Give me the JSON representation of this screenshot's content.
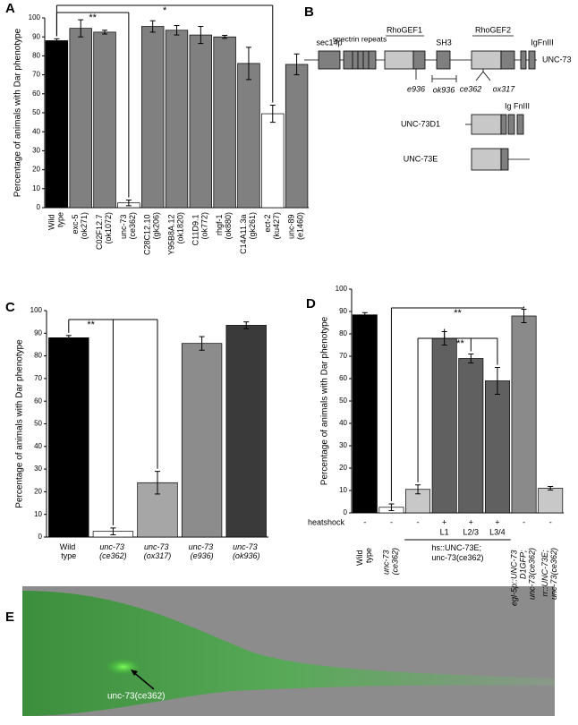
{
  "chart_data": [
    {
      "type": "bar",
      "panel": "A",
      "ylabel": "Percentage of animals with Dar phenotype",
      "categories": [
        "Wild type",
        "exc-5 (ok271)",
        "C02F12.7 (ok1072)",
        "unc-73 (ce362)",
        "C28C12.10 (gk206)",
        "Y95B8A.12 (ok1820)",
        "C11D9.1 (ok772)",
        "rhgf-1 (ok880)",
        "C14A11.3a (gk261)",
        "ect-2 (ku427)",
        "unc-89 (e1460)"
      ],
      "italic": [
        false,
        false,
        false,
        false,
        false,
        false,
        false,
        false,
        false,
        false,
        false
      ],
      "values": [
        88,
        94.5,
        92.5,
        2.5,
        95.5,
        93.5,
        91,
        90,
        76,
        49.5,
        75.5
      ],
      "errors": [
        1,
        4.5,
        1,
        1.5,
        3,
        2.5,
        4.5,
        0.8,
        8.5,
        4.5,
        5.5
      ],
      "colors": [
        "#000000",
        "#808080",
        "#808080",
        "#ffffff",
        "#808080",
        "#808080",
        "#808080",
        "#808080",
        "#808080",
        "#ffffff",
        "#808080"
      ],
      "ylim": [
        0,
        100
      ],
      "yticks": [
        0,
        10,
        20,
        30,
        40,
        50,
        60,
        70,
        80,
        90,
        100
      ],
      "annotations": [
        "**",
        "*"
      ]
    },
    {
      "type": "bar",
      "panel": "C",
      "ylabel": "Percentage of animals with Dar phenotype",
      "categories": [
        "Wild type",
        "unc-73 (ce362)",
        "unc-73 (ox317)",
        "unc-73 (e936)",
        "unc-73 (ok936)"
      ],
      "italic": [
        false,
        true,
        true,
        true,
        true
      ],
      "values": [
        88,
        2.5,
        24,
        85.5,
        93.5
      ],
      "errors": [
        1,
        1.5,
        5,
        3,
        1.5
      ],
      "colors": [
        "#000000",
        "#ffffff",
        "#a6a6a6",
        "#8c8c8c",
        "#3a3a3a"
      ],
      "ylim": [
        0,
        100
      ],
      "yticks": [
        0,
        10,
        20,
        30,
        40,
        50,
        60,
        70,
        80,
        90,
        100
      ],
      "annotations": [
        "**"
      ]
    },
    {
      "type": "bar",
      "panel": "D",
      "ylabel": "Percentage of animals with Dar phenotype",
      "categories": [
        "Wild type",
        "unc-73 (ce362)",
        null,
        null,
        null,
        null,
        "egl-5p::UNC-73 D1GFP; unc-73(ce362)",
        "rr::UNC-73E; unc-73(ce362)"
      ],
      "italic": [
        false,
        true,
        false,
        false,
        false,
        false,
        true,
        true
      ],
      "values": [
        88.5,
        2.5,
        10.5,
        78,
        69,
        59,
        88,
        11
      ],
      "errors": [
        1,
        1.5,
        2,
        3,
        2,
        6,
        3,
        0.8
      ],
      "colors": [
        "#000000",
        "#ffffff",
        "#c8c8c8",
        "#606060",
        "#606060",
        "#606060",
        "#8a8a8a",
        "#c8c8c8"
      ],
      "ylim": [
        0,
        100
      ],
      "yticks": [
        0,
        10,
        20,
        30,
        40,
        50,
        60,
        70,
        80,
        90,
        100
      ],
      "annotations": [
        "**",
        "**"
      ],
      "row_label": "heatshock",
      "row_values": [
        "-",
        "-",
        "-",
        "+",
        "+",
        "+",
        "-",
        "-"
      ],
      "stages": [
        null,
        null,
        null,
        "L1",
        "L2/3",
        "L3/4",
        null,
        null
      ],
      "group_label": "hs::UNC-73E; unc-73(ce362)"
    }
  ],
  "diagram": {
    "panel": "B",
    "domains": [
      "sec14p",
      "spectrin repeats",
      "RhoGEF1",
      "SH3",
      "RhoGEF2",
      "IgFnIII"
    ],
    "protein": "UNC-73",
    "alleles": [
      "e936",
      "ok936",
      "ce362",
      "ox317"
    ],
    "isoform_domain": "Ig FnIII",
    "isoforms": [
      "UNC-73D1",
      "UNC-73E"
    ]
  },
  "image": {
    "panel": "E",
    "label": "unc-73(ce362)"
  }
}
